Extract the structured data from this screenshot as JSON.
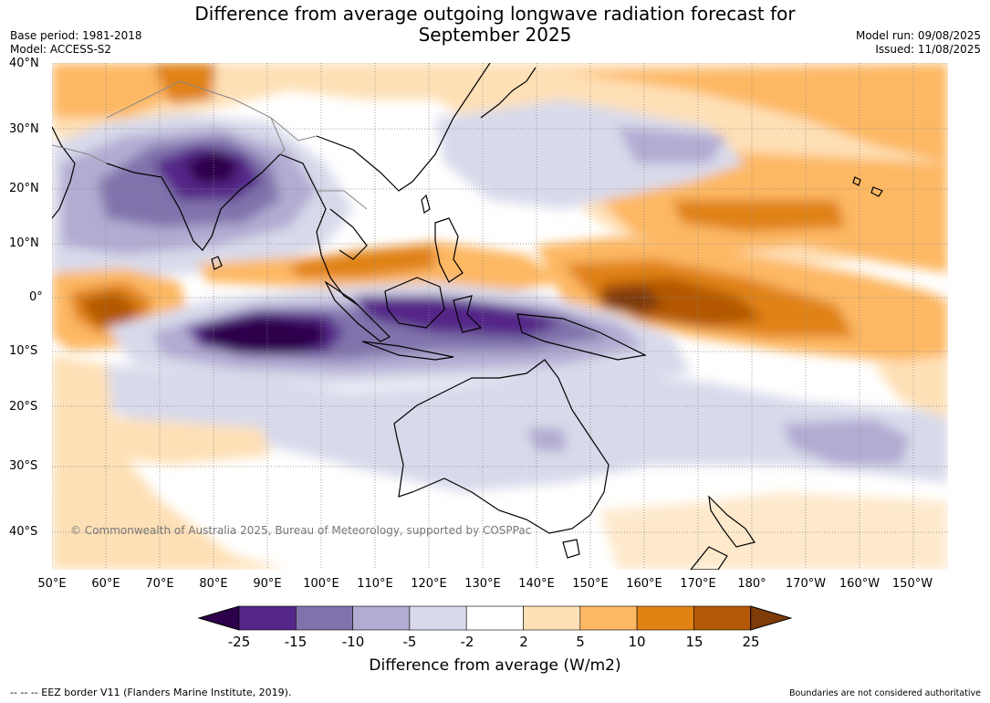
{
  "header": {
    "title_line1": "Difference from average outgoing longwave radiation forecast for",
    "title_line2": "September 2025",
    "base_period": "Base period: 1981-2018",
    "model": "Model: ACCESS-S2",
    "model_run": "Model run: 09/08/2025",
    "issued": "Issued: 11/08/2025"
  },
  "map": {
    "lat_labels": [
      "40°N",
      "30°N",
      "20°N",
      "10°N",
      "0°",
      "10°S",
      "20°S",
      "30°S",
      "40°S"
    ],
    "lon_labels": [
      "50°E",
      "60°E",
      "70°E",
      "80°E",
      "90°E",
      "100°E",
      "110°E",
      "120°E",
      "130°E",
      "140°E",
      "150°E",
      "160°E",
      "170°E",
      "180°",
      "170°W",
      "160°W",
      "150°W"
    ],
    "copyright": "© Commonwealth of Australia 2025, Bureau of Meteorology, supported by COSPPac"
  },
  "colorbar": {
    "ticks": [
      "-25",
      "-15",
      "-10",
      "-5",
      "-2",
      "2",
      "5",
      "10",
      "15",
      "25"
    ],
    "colors": [
      "#2d004b",
      "#542788",
      "#8073ac",
      "#b2abd2",
      "#d8daeb",
      "#ffffff",
      "#fee0b6",
      "#fdb863",
      "#e08214",
      "#b35806",
      "#7f3b08"
    ],
    "label": "Difference from average (W/m2)"
  },
  "footer": {
    "eez": "--  --  -- EEZ border V11 (Flanders Marine Institute, 2019).",
    "disclaimer": "Boundaries are not considered authoritative"
  }
}
